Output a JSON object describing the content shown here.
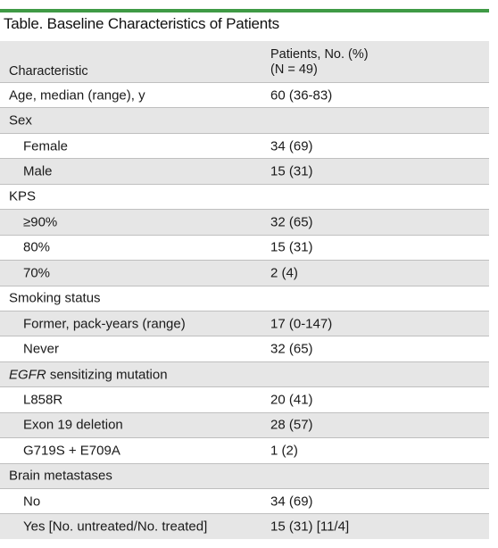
{
  "caption": "Table. Baseline Characteristics of Patients",
  "header": {
    "characteristic": "Characteristic",
    "patients_line1": "Patients, No. (%)",
    "patients_line2": "(N = 49)"
  },
  "rows": [
    {
      "label": "Age, median (range), y",
      "value": "60 (36-83)"
    },
    {
      "label": "Sex",
      "value": ""
    },
    {
      "label": "Female",
      "value": "34 (69)"
    },
    {
      "label": "Male",
      "value": "15 (31)"
    },
    {
      "label": "KPS",
      "value": ""
    },
    {
      "label": "≥90%",
      "value": "32 (65)"
    },
    {
      "label": "80%",
      "value": "15 (31)"
    },
    {
      "label": "70%",
      "value": "2 (4)"
    },
    {
      "label": "Smoking status",
      "value": ""
    },
    {
      "label": "Former, pack-years (range)",
      "value": "17 (0-147)"
    },
    {
      "label": "Never",
      "value": "32 (65)"
    },
    {
      "label_italic": "EGFR",
      "label": " sensitizing mutation",
      "value": ""
    },
    {
      "label": "L858R",
      "value": "20 (41)"
    },
    {
      "label": "Exon 19 deletion",
      "value": "28 (57)"
    },
    {
      "label": "G719S + E709A",
      "value": "1 (2)"
    },
    {
      "label": "Brain metastases",
      "value": ""
    },
    {
      "label": "No",
      "value": "34 (69)"
    },
    {
      "label": "Yes [No. untreated/No. treated]",
      "value": "15 (31) [11/4]"
    }
  ],
  "colors": {
    "accent_rule": "#3f9a45",
    "header_shade": "#e6e6e6"
  }
}
